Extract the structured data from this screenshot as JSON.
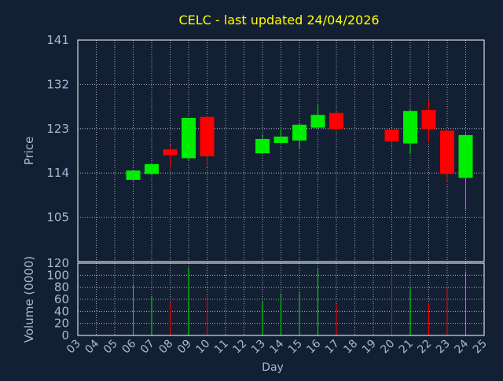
{
  "chart_data": {
    "type": "candlestick",
    "title": "CELC - last updated 24/04/2026",
    "price_panel": {
      "ylabel": "Price",
      "ylim": [
        96,
        141
      ],
      "yticks": [
        105,
        114,
        123,
        132,
        141
      ],
      "grid": true
    },
    "volume_panel": {
      "ylabel": "Volume (0000)",
      "ylim": [
        0,
        120
      ],
      "yticks": [
        0,
        20,
        40,
        60,
        80,
        100,
        120
      ],
      "grid": true
    },
    "xlabel": "Day",
    "x_ticks": [
      "03",
      "04",
      "05",
      "06",
      "07",
      "08",
      "09",
      "10",
      "11",
      "12",
      "13",
      "14",
      "15",
      "16",
      "17",
      "18",
      "19",
      "20",
      "21",
      "22",
      "23",
      "24",
      "25"
    ],
    "candles": [
      {
        "day": "06",
        "open": 112.6,
        "close": 114.5,
        "high": 114.6,
        "low": 112.4,
        "volume": 85
      },
      {
        "day": "07",
        "open": 113.8,
        "close": 115.8,
        "high": 115.9,
        "low": 113.6,
        "volume": 65
      },
      {
        "day": "08",
        "open": 118.8,
        "close": 117.6,
        "high": 119.8,
        "low": 115.0,
        "volume": 57
      },
      {
        "day": "09",
        "open": 117.0,
        "close": 125.2,
        "high": 125.2,
        "low": 116.6,
        "volume": 113
      },
      {
        "day": "10",
        "open": 125.4,
        "close": 117.4,
        "high": 125.7,
        "low": 115.2,
        "volume": 67
      },
      {
        "day": "13",
        "open": 118.0,
        "close": 120.9,
        "high": 121.7,
        "low": 117.8,
        "volume": 57
      },
      {
        "day": "14",
        "open": 120.1,
        "close": 121.4,
        "high": 123.2,
        "low": 119.8,
        "volume": 70
      },
      {
        "day": "15",
        "open": 120.6,
        "close": 123.8,
        "high": 124.1,
        "low": 118.8,
        "volume": 72
      },
      {
        "day": "16",
        "open": 123.2,
        "close": 125.8,
        "high": 127.8,
        "low": 123.0,
        "volume": 110
      },
      {
        "day": "17",
        "open": 126.2,
        "close": 122.9,
        "high": 126.4,
        "low": 122.6,
        "volume": 52
      },
      {
        "day": "20",
        "open": 122.8,
        "close": 120.4,
        "high": 123.0,
        "low": 119.4,
        "volume": 97
      },
      {
        "day": "21",
        "open": 120.0,
        "close": 126.6,
        "high": 126.9,
        "low": 117.8,
        "volume": 78
      },
      {
        "day": "22",
        "open": 126.8,
        "close": 122.9,
        "high": 128.8,
        "low": 120.2,
        "volume": 54
      },
      {
        "day": "23",
        "open": 122.6,
        "close": 113.8,
        "high": 122.8,
        "low": 112.2,
        "volume": 80
      },
      {
        "day": "24",
        "open": 113.0,
        "close": 121.7,
        "high": 122.0,
        "low": 106.6,
        "volume": 106
      }
    ],
    "colors": {
      "up": "#00ee00",
      "down": "#ff0000",
      "background": "#132033",
      "plot_border": "#ffffff",
      "grid": "#c8d0dc",
      "title": "#ffff00",
      "axis_text": "#a8b8d0"
    }
  }
}
